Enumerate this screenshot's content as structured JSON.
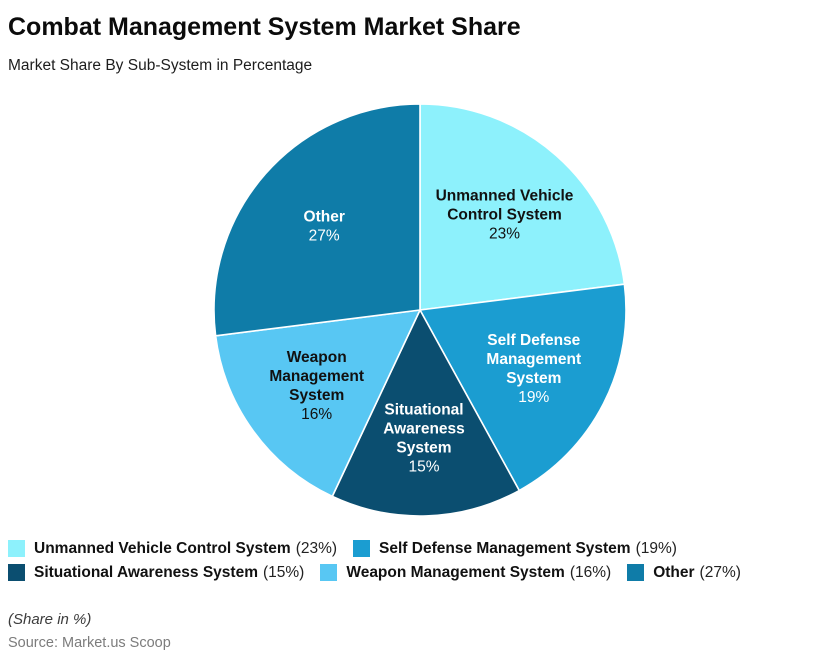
{
  "header": {
    "title": "Combat Management System Market Share",
    "subtitle": "Market Share By Sub-System in Percentage"
  },
  "chart_data": {
    "type": "pie",
    "title": "Combat Management System Market Share",
    "subtitle": "Market Share By Sub-System in Percentage",
    "unit": "%",
    "values_sum": 100,
    "start_angle_deg": 0,
    "direction": "clockwise",
    "legend_position": "bottom",
    "slices": [
      {
        "label": "Unmanned Vehicle Control System",
        "value": 23,
        "pct_label": "23%",
        "share_text": "(23%)",
        "color": "#8DF1FC",
        "text_color": "#111111",
        "label_lines": [
          "Unmanned Vehicle",
          "Control System"
        ]
      },
      {
        "label": "Self Defense Management System",
        "value": 19,
        "pct_label": "19%",
        "share_text": "(19%)",
        "color": "#1B9DD1",
        "text_color": "#ffffff",
        "label_lines": [
          "Self Defense",
          "Management",
          "System"
        ]
      },
      {
        "label": "Situational Awareness System",
        "value": 15,
        "pct_label": "15%",
        "share_text": "(15%)",
        "color": "#0B4E70",
        "text_color": "#ffffff",
        "label_lines": [
          "Situational",
          "Awareness",
          "System"
        ]
      },
      {
        "label": "Weapon Management System",
        "value": 16,
        "pct_label": "16%",
        "share_text": "(16%)",
        "color": "#58C7F3",
        "text_color": "#111111",
        "label_lines": [
          "Weapon",
          "Management",
          "System"
        ]
      },
      {
        "label": "Other",
        "value": 27,
        "pct_label": "27%",
        "share_text": "(27%)",
        "color": "#0F7CA8",
        "text_color": "#ffffff",
        "label_lines": [
          "Other"
        ]
      }
    ]
  },
  "footer": {
    "note": "(Share in %)",
    "source": "Source: Market.us Scoop"
  }
}
